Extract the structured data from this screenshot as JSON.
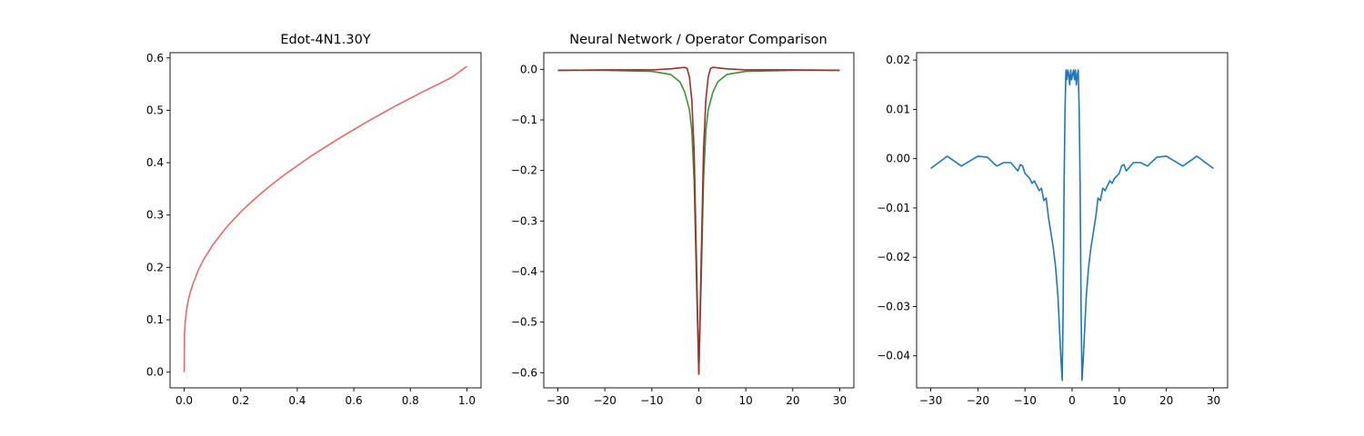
{
  "chart_data": [
    {
      "type": "line",
      "title": "Edot-4N1.30Y",
      "xlim": [
        -0.05,
        1.05
      ],
      "ylim": [
        -0.03,
        0.61
      ],
      "xticks": [
        0.0,
        0.2,
        0.4,
        0.6,
        0.8,
        1.0
      ],
      "xtick_labels": [
        "0.0",
        "0.2",
        "0.4",
        "0.6",
        "0.8",
        "1.0"
      ],
      "yticks": [
        0.0,
        0.1,
        0.2,
        0.3,
        0.4,
        0.5,
        0.6
      ],
      "ytick_labels": [
        "0.0",
        "0.1",
        "0.2",
        "0.3",
        "0.4",
        "0.5",
        "0.6"
      ],
      "grid": false,
      "series": [
        {
          "color": "#e8696b",
          "x": [
            0,
            0.001,
            0.003,
            0.006,
            0.01,
            0.015,
            0.02,
            0.03,
            0.05,
            0.07,
            0.1,
            0.15,
            0.2,
            0.25,
            0.3,
            0.35,
            0.4,
            0.45,
            0.5,
            0.55,
            0.6,
            0.65,
            0.7,
            0.75,
            0.8,
            0.85,
            0.9,
            0.95,
            1.0
          ],
          "y": [
            0.0,
            0.073,
            0.09,
            0.108,
            0.124,
            0.138,
            0.149,
            0.167,
            0.195,
            0.216,
            0.242,
            0.277,
            0.306,
            0.331,
            0.354,
            0.375,
            0.394,
            0.413,
            0.43,
            0.447,
            0.463,
            0.479,
            0.494,
            0.509,
            0.523,
            0.537,
            0.55,
            0.564,
            0.584
          ]
        }
      ]
    },
    {
      "type": "line",
      "title": "Neural Network / Operator Comparison",
      "xlim": [
        -33,
        33
      ],
      "ylim": [
        -0.63,
        0.033
      ],
      "xticks": [
        -30,
        -20,
        -10,
        0,
        10,
        20,
        30
      ],
      "xtick_labels": [
        "−30",
        "−20",
        "−10",
        "0",
        "10",
        "20",
        "30"
      ],
      "yticks": [
        0.0,
        -0.1,
        -0.2,
        -0.3,
        -0.4,
        -0.5,
        -0.6
      ],
      "ytick_labels": [
        "0.0",
        "−0.1",
        "−0.2",
        "−0.3",
        "−0.4",
        "−0.5",
        "−0.6"
      ],
      "grid": false,
      "series": [
        {
          "color": "#3a923a",
          "x": [
            -30,
            -20,
            -10,
            -6,
            -4,
            -3,
            -2,
            -1.5,
            -1,
            -0.5,
            0,
            0.5,
            1,
            1.5,
            2,
            3,
            4,
            6,
            10,
            20,
            30
          ],
          "y": [
            -0.002,
            -0.002,
            -0.004,
            -0.01,
            -0.025,
            -0.045,
            -0.08,
            -0.12,
            -0.22,
            -0.42,
            -0.6,
            -0.42,
            -0.22,
            -0.12,
            -0.08,
            -0.045,
            -0.025,
            -0.01,
            -0.004,
            -0.002,
            -0.002
          ]
        },
        {
          "color": "#a12c2c",
          "x": [
            -30,
            -20,
            -10,
            -6,
            -4,
            -3,
            -2.5,
            -2,
            -1.5,
            -1,
            -0.5,
            0,
            0.5,
            1,
            1.5,
            2,
            2.5,
            3,
            4,
            6,
            10,
            20,
            30
          ],
          "y": [
            -0.002,
            -0.001,
            -0.001,
            0.001,
            0.003,
            0.004,
            0.002,
            -0.015,
            -0.06,
            -0.16,
            -0.38,
            -0.603,
            -0.38,
            -0.16,
            -0.06,
            -0.015,
            0.002,
            0.004,
            0.003,
            0.001,
            -0.001,
            -0.001,
            -0.002
          ]
        }
      ]
    },
    {
      "type": "line",
      "title": "",
      "xlim": [
        -33,
        33
      ],
      "ylim": [
        -0.0465,
        0.0215
      ],
      "xticks": [
        -30,
        -20,
        -10,
        0,
        10,
        20,
        30
      ],
      "xtick_labels": [
        "−30",
        "−20",
        "−10",
        "0",
        "10",
        "20",
        "30"
      ],
      "yticks": [
        0.02,
        0.01,
        0.0,
        -0.01,
        -0.02,
        -0.03,
        -0.04
      ],
      "ytick_labels": [
        "0.02",
        "0.01",
        "0.00",
        "−0.01",
        "−0.02",
        "−0.03",
        "−0.04"
      ],
      "grid": false,
      "series": [
        {
          "color": "#1f77b4",
          "x": [
            -30,
            -26.5,
            -23.5,
            -20,
            -18,
            -16,
            -14.5,
            -13,
            -11.5,
            -11,
            -10.5,
            -10,
            -9.5,
            -9,
            -8.5,
            -8,
            -7.5,
            -7,
            -6.5,
            -6,
            -5.5,
            -5,
            -4.5,
            -4,
            -3.5,
            -3,
            -2.7,
            -2.4,
            -2.1,
            -1.9,
            -1.7,
            -1.5,
            -1.3,
            -1.1,
            -0.9,
            -0.7,
            -0.5,
            -0.3,
            -0.1,
            0.1,
            0.3,
            0.5,
            0.7,
            0.9,
            1.1,
            1.3,
            1.5,
            1.7,
            1.9,
            2.1,
            2.4,
            2.7,
            3,
            3.5,
            4,
            4.5,
            5,
            5.5,
            6,
            6.5,
            7,
            7.5,
            8,
            8.5,
            9,
            9.5,
            10,
            10.5,
            11,
            11.5,
            13,
            14.5,
            16,
            18,
            20,
            23.5,
            26.5,
            30
          ],
          "y": [
            -0.002,
            0.0005,
            -0.0015,
            0.0005,
            0.0003,
            -0.0015,
            -0.0008,
            -0.0008,
            -0.0025,
            -0.0012,
            -0.0015,
            -0.003,
            -0.0035,
            -0.004,
            -0.005,
            -0.0045,
            -0.0055,
            -0.0065,
            -0.006,
            -0.0085,
            -0.008,
            -0.012,
            -0.015,
            -0.018,
            -0.022,
            -0.028,
            -0.034,
            -0.04,
            -0.045,
            -0.03,
            -0.005,
            0.01,
            0.018,
            0.016,
            0.018,
            0.017,
            0.015,
            0.018,
            0.016,
            0.017,
            0.018,
            0.016,
            0.018,
            0.015,
            0.017,
            0.018,
            0.01,
            -0.005,
            -0.03,
            -0.045,
            -0.04,
            -0.034,
            -0.028,
            -0.022,
            -0.018,
            -0.015,
            -0.012,
            -0.008,
            -0.0085,
            -0.006,
            -0.0065,
            -0.0055,
            -0.0045,
            -0.005,
            -0.004,
            -0.0035,
            -0.003,
            -0.0015,
            -0.0012,
            -0.0025,
            -0.0008,
            -0.0008,
            -0.0015,
            0.0003,
            0.0005,
            -0.0015,
            0.0005,
            -0.002
          ]
        }
      ]
    }
  ]
}
